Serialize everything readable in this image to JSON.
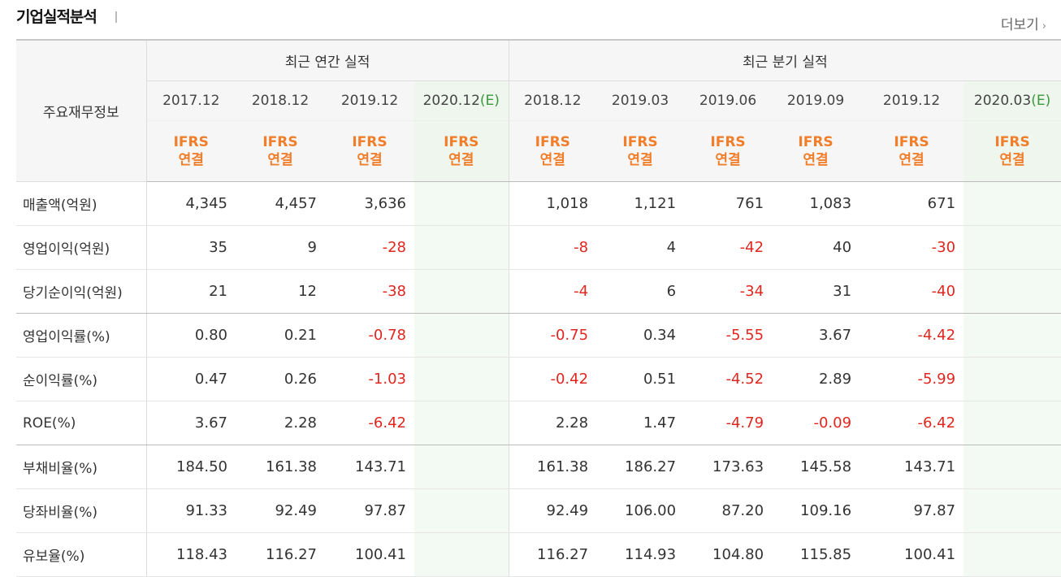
{
  "section": {
    "title": "기업실적분석",
    "more_label": "더보기",
    "more_arrow": "›"
  },
  "table": {
    "corner_label": "주요재무정보",
    "groups": {
      "annual": "최근 연간 실적",
      "quarterly": "최근 분기 실적"
    },
    "periods": [
      "2017.12",
      "2018.12",
      "2019.12",
      "2020.12",
      "2018.12",
      "2019.03",
      "2019.06",
      "2019.09",
      "2019.12",
      "2020.03"
    ],
    "estimate_marker": "(E)",
    "ifrs_top": "IFRS",
    "ifrs_bottom": "연결",
    "rows": [
      {
        "label": "매출액(억원)",
        "values": [
          "4,345",
          "4,457",
          "3,636",
          "",
          "1,018",
          "1,121",
          "761",
          "1,083",
          "671",
          ""
        ]
      },
      {
        "label": "영업이익(억원)",
        "values": [
          "35",
          "9",
          "-28",
          "",
          "-8",
          "4",
          "-42",
          "40",
          "-30",
          ""
        ]
      },
      {
        "label": "당기순이익(억원)",
        "values": [
          "21",
          "12",
          "-38",
          "",
          "-4",
          "6",
          "-34",
          "31",
          "-40",
          ""
        ]
      },
      {
        "label": "영업이익률(%)",
        "values": [
          "0.80",
          "0.21",
          "-0.78",
          "",
          "-0.75",
          "0.34",
          "-5.55",
          "3.67",
          "-4.42",
          ""
        ]
      },
      {
        "label": "순이익률(%)",
        "values": [
          "0.47",
          "0.26",
          "-1.03",
          "",
          "-0.42",
          "0.51",
          "-4.52",
          "2.89",
          "-5.99",
          ""
        ]
      },
      {
        "label": "ROE(%)",
        "values": [
          "3.67",
          "2.28",
          "-6.42",
          "",
          "2.28",
          "1.47",
          "-4.79",
          "-0.09",
          "-6.42",
          ""
        ]
      },
      {
        "label": "부채비율(%)",
        "values": [
          "184.50",
          "161.38",
          "143.71",
          "",
          "161.38",
          "186.27",
          "173.63",
          "145.58",
          "143.71",
          ""
        ]
      },
      {
        "label": "당좌비율(%)",
        "values": [
          "91.33",
          "92.49",
          "97.87",
          "",
          "92.49",
          "106.00",
          "87.20",
          "109.16",
          "97.87",
          ""
        ]
      },
      {
        "label": "유보율(%)",
        "values": [
          "118.43",
          "116.27",
          "100.41",
          "",
          "116.27",
          "114.93",
          "104.80",
          "115.85",
          "100.41",
          ""
        ]
      }
    ]
  },
  "colors": {
    "negative": "#e0261f",
    "ifrs": "#f07e2b",
    "estimate": "#3a9a3a"
  }
}
